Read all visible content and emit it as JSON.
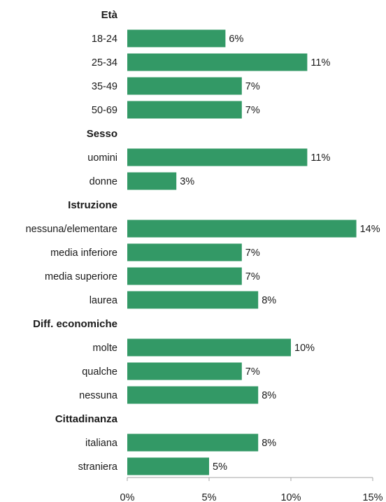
{
  "chart_data": {
    "type": "bar",
    "orientation": "horizontal",
    "bar_color": "#339966",
    "value_suffix": "%",
    "xlim": [
      0,
      15
    ],
    "x_ticks": [
      0,
      5,
      10,
      15
    ],
    "x_tick_labels": [
      "0%",
      "5%",
      "10%",
      "15%"
    ],
    "grid": false,
    "groups": [
      {
        "title": "Età",
        "categories": [
          "18-24",
          "25-34",
          "35-49",
          "50-69"
        ],
        "values": [
          6,
          11,
          7,
          7
        ],
        "value_labels": [
          "6%",
          "11%",
          "7%",
          "7%"
        ]
      },
      {
        "title": "Sesso",
        "categories": [
          "uomini",
          "donne"
        ],
        "values": [
          11,
          3
        ],
        "value_labels": [
          "11%",
          "3%"
        ]
      },
      {
        "title": "Istruzione",
        "categories": [
          "nessuna/elementare",
          "media inferiore",
          "media superiore",
          "laurea"
        ],
        "values": [
          14,
          7,
          7,
          8
        ],
        "value_labels": [
          "14%",
          "7%",
          "7%",
          "8%"
        ]
      },
      {
        "title": "Diff. economiche",
        "categories": [
          "molte",
          "qualche",
          "nessuna"
        ],
        "values": [
          10,
          7,
          8
        ],
        "value_labels": [
          "10%",
          "7%",
          "8%"
        ]
      },
      {
        "title": "Cittadinanza",
        "categories": [
          "italiana",
          "straniera"
        ],
        "values": [
          8,
          5
        ],
        "value_labels": [
          "8%",
          "5%"
        ]
      }
    ]
  }
}
